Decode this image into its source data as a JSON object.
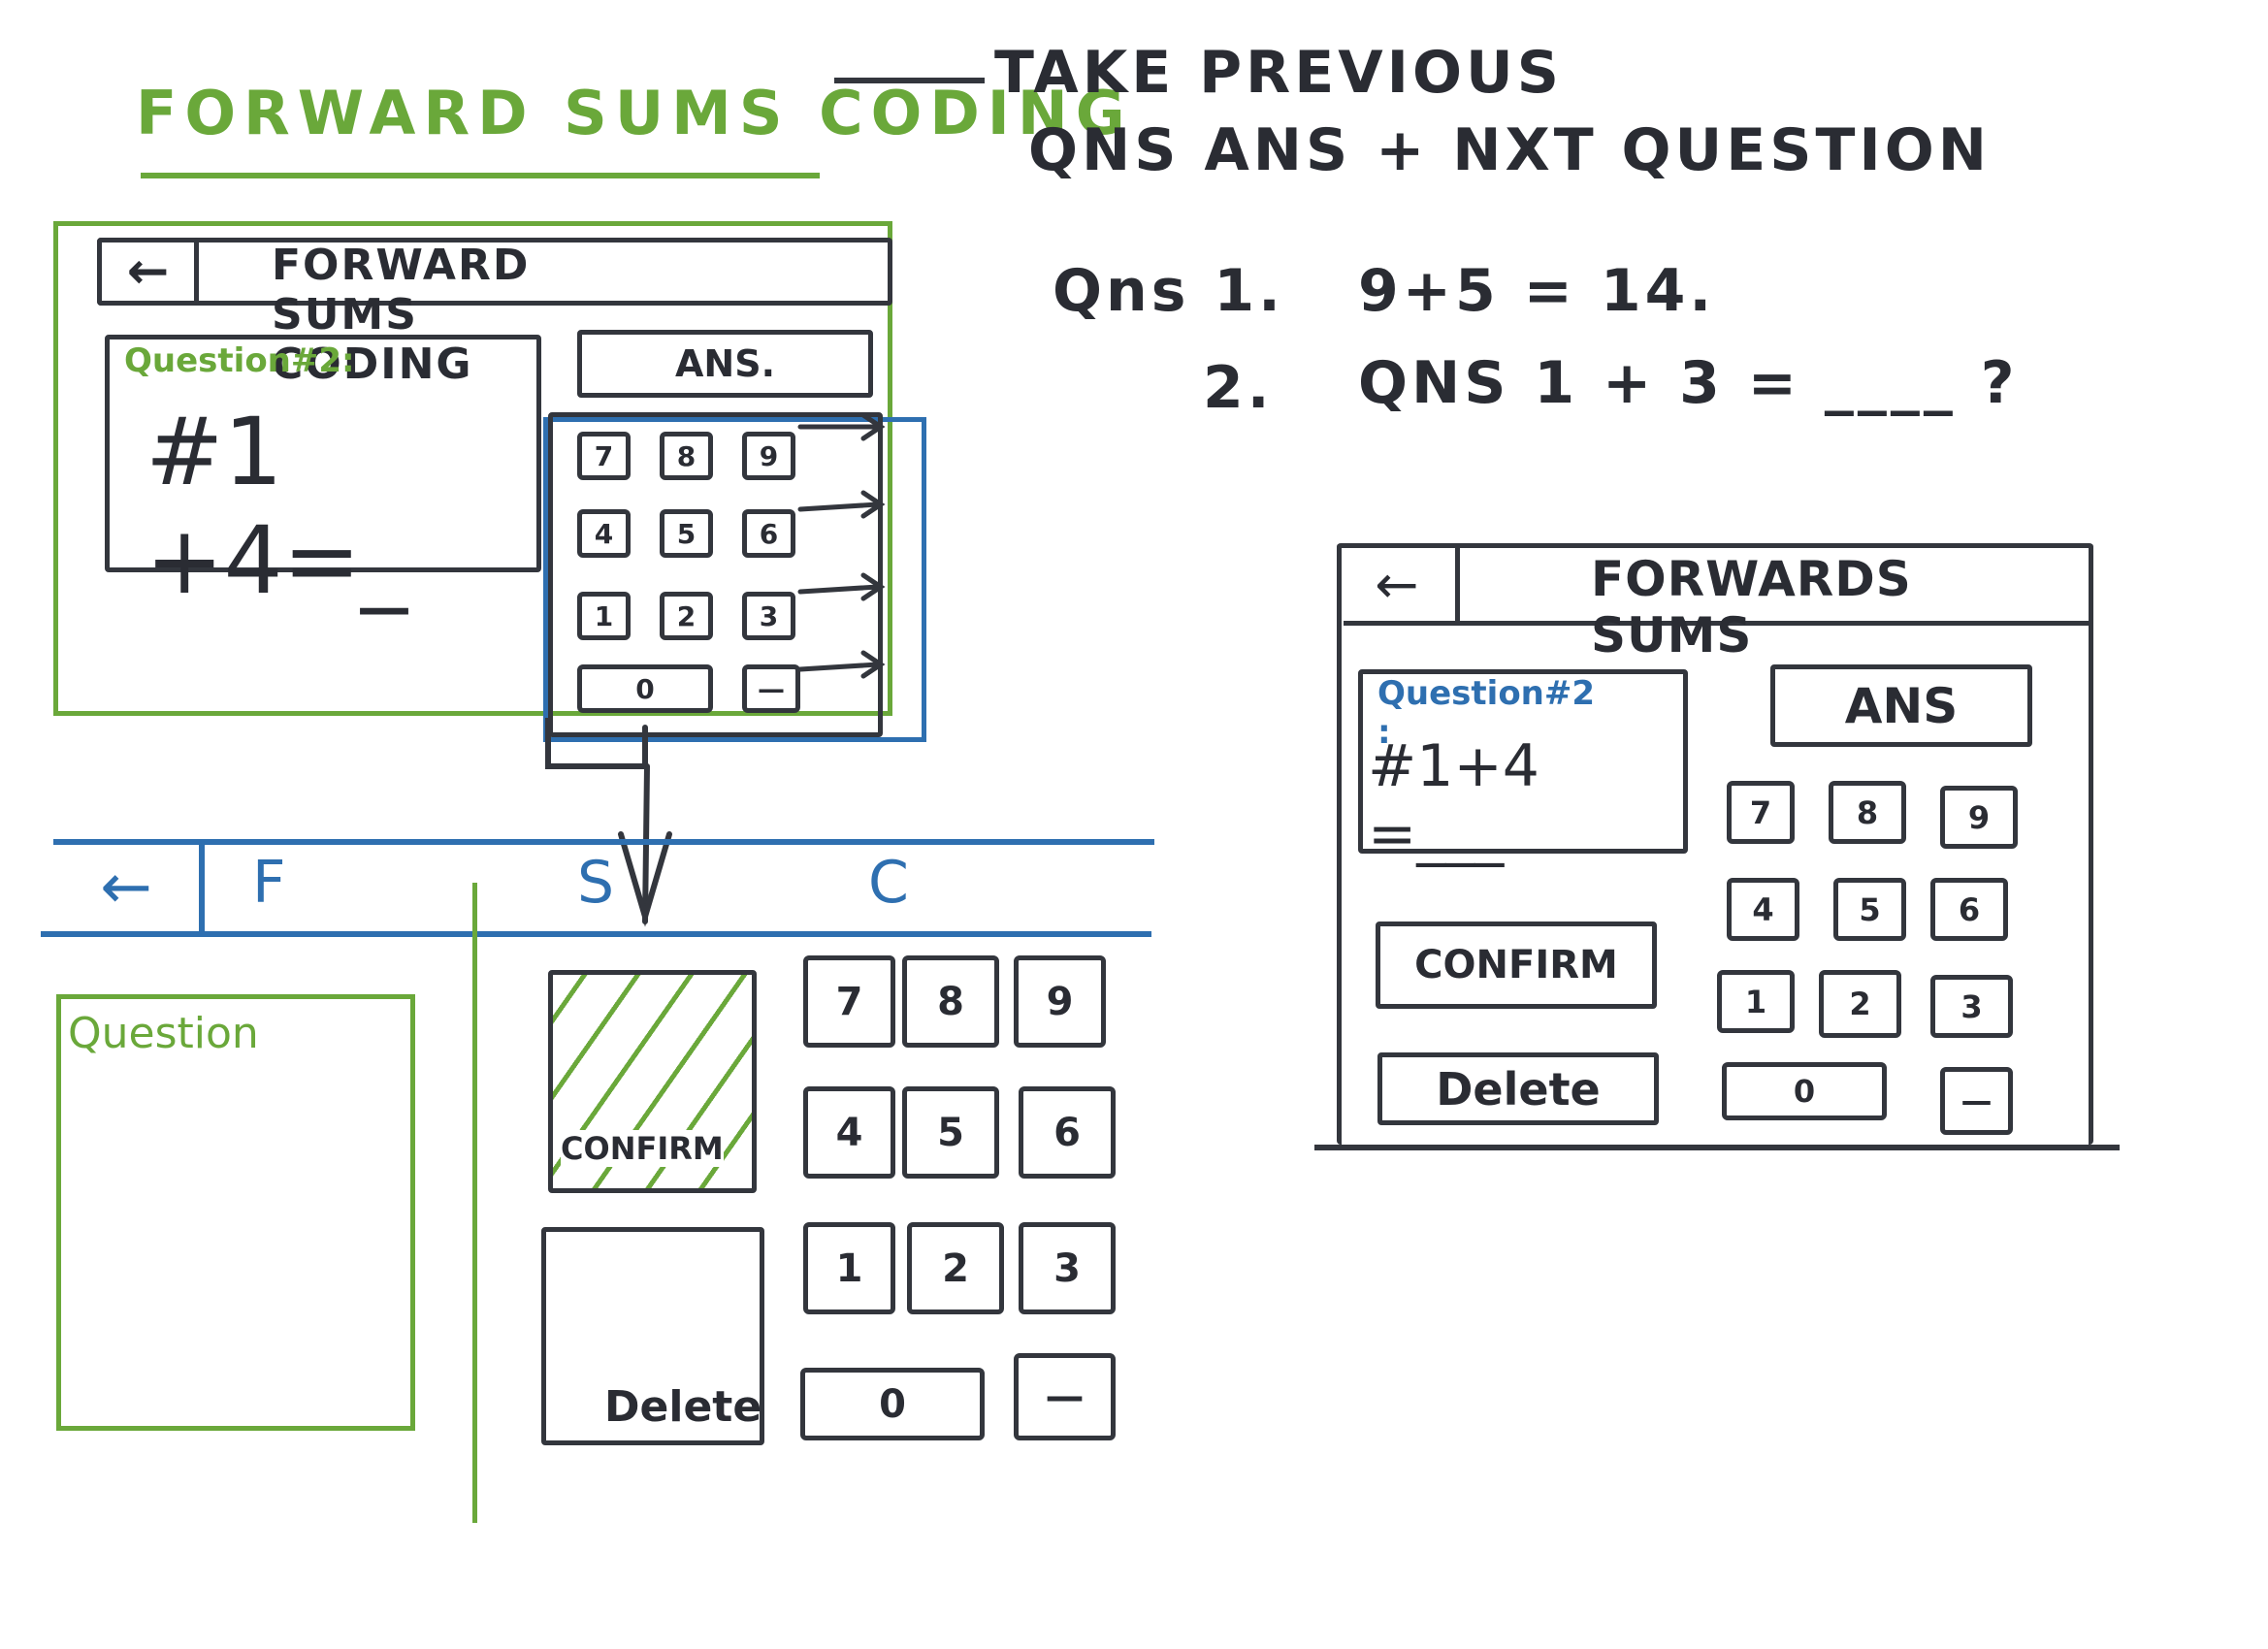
{
  "title": "FORWARD SUMS CODING",
  "note": {
    "line1": "TAKE PREVIOUS",
    "line2": "QNS ANS + NXT QUESTION"
  },
  "example": {
    "q1_label": "Qns 1.",
    "q1_expr": "9+5 = 14.",
    "q2_label": "2.",
    "q2_expr": "QNS 1 + 3 = ____ ?"
  },
  "sketch1": {
    "back": "←",
    "title": "FORWARD SUMS CODING",
    "question_label": "Question#2:",
    "question_expr": "#1 +4=_",
    "ans_label": "ANS.",
    "keys": [
      "7",
      "8",
      "9",
      "4",
      "5",
      "6",
      "1",
      "2",
      "3",
      "0",
      "—"
    ]
  },
  "sketch2": {
    "back": "←",
    "tab_f": "F",
    "tab_s": "S",
    "tab_c": "C",
    "question_label": "Question",
    "confirm_label": "CONFIRM",
    "delete_label": "Delete",
    "keys": [
      "7",
      "8",
      "9",
      "4",
      "5",
      "6",
      "1",
      "2",
      "3",
      "0",
      "—"
    ]
  },
  "sketch3": {
    "back": "←",
    "title": "FORWARDS SUMS",
    "question_label": "Question#2 :",
    "question_expr": "#1+4 =___",
    "ans_label": "ANS",
    "confirm_label": "CONFIRM",
    "delete_label": "Delete",
    "keys": [
      "7",
      "8",
      "9",
      "4",
      "5",
      "6",
      "1",
      "2",
      "3",
      "0",
      "—"
    ]
  },
  "colors": {
    "ink": "#2a2c33",
    "green": "#6aa83a",
    "blue": "#2e6fb0"
  }
}
